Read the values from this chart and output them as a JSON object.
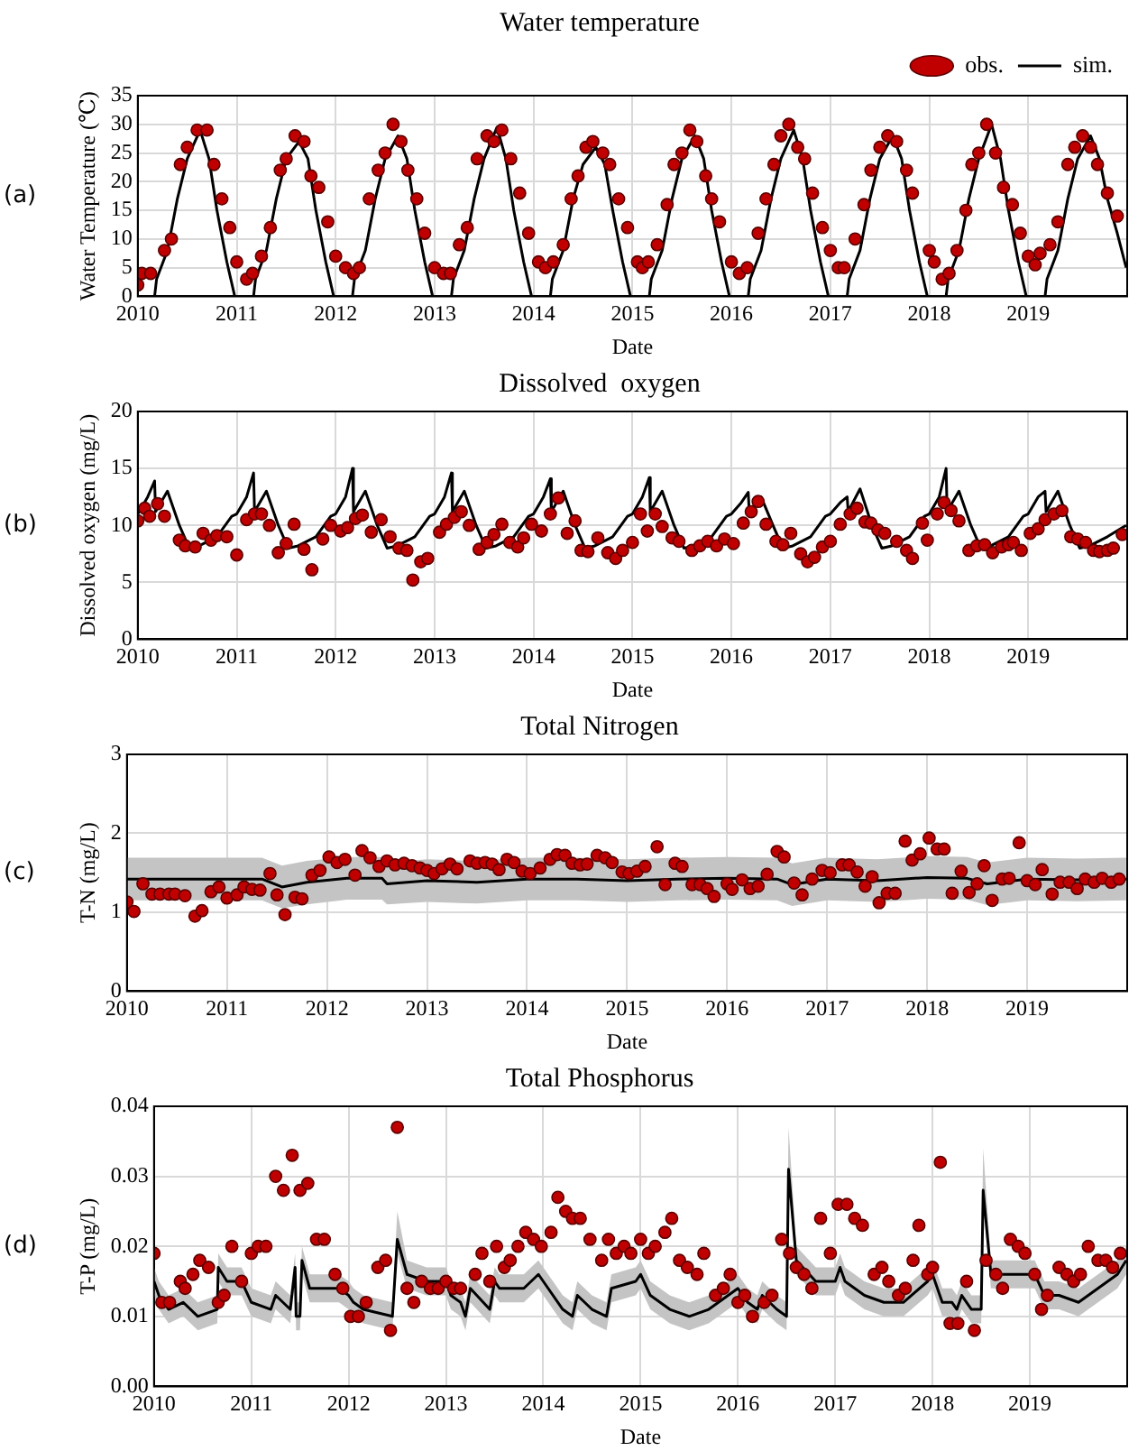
{
  "chart_data": [
    {
      "type": "scatter",
      "title": "Water temperature",
      "xlabel": "Date",
      "ylabel": "Water Temperature (℃)",
      "annotations": [
        "(a)"
      ],
      "legend": "top right",
      "grid": true,
      "xlim": [
        2010,
        2020
      ],
      "xticks": [
        2010,
        2011,
        2012,
        2013,
        2014,
        2015,
        2016,
        2017,
        2018,
        2019
      ],
      "ylim": [
        0,
        35
      ],
      "yticks": [
        0,
        5,
        10,
        15,
        20,
        25,
        30,
        35
      ],
      "series": [
        {
          "name": "obs.",
          "marker": "circle",
          "color": "#c00000",
          "x": [
            2010.0,
            2010.04,
            2010.13,
            2010.27,
            2010.34,
            2010.43,
            2010.5,
            2010.6,
            2010.7,
            2010.77,
            2010.85,
            2010.93,
            2011.0,
            2011.1,
            2011.16,
            2011.25,
            2011.34,
            2011.44,
            2011.5,
            2011.59,
            2011.68,
            2011.75,
            2011.83,
            2011.92,
            2012.0,
            2012.1,
            2012.18,
            2012.24,
            2012.34,
            2012.43,
            2012.5,
            2012.58,
            2012.66,
            2012.73,
            2012.82,
            2012.9,
            2013.0,
            2013.09,
            2013.16,
            2013.25,
            2013.33,
            2013.43,
            2013.53,
            2013.6,
            2013.68,
            2013.77,
            2013.86,
            2013.95,
            2014.05,
            2014.12,
            2014.2,
            2014.3,
            2014.38,
            2014.45,
            2014.53,
            2014.6,
            2014.7,
            2014.77,
            2014.86,
            2014.95,
            2015.05,
            2015.1,
            2015.16,
            2015.25,
            2015.35,
            2015.42,
            2015.5,
            2015.58,
            2015.65,
            2015.74,
            2015.8,
            2015.88,
            2016.0,
            2016.08,
            2016.16,
            2016.27,
            2016.35,
            2016.43,
            2016.5,
            2016.58,
            2016.67,
            2016.74,
            2016.82,
            2016.92,
            2017.0,
            2017.08,
            2017.14,
            2017.25,
            2017.34,
            2017.41,
            2017.5,
            2017.58,
            2017.67,
            2017.77,
            2017.83,
            2018.0,
            2018.05,
            2018.13,
            2018.2,
            2018.28,
            2018.37,
            2018.43,
            2018.5,
            2018.58,
            2018.67,
            2018.75,
            2018.84,
            2018.92,
            2019.0,
            2019.07,
            2019.12,
            2019.22,
            2019.3,
            2019.4,
            2019.47,
            2019.55,
            2019.63,
            2019.7,
            2019.8,
            2019.9
          ],
          "values": [
            2,
            4,
            4,
            8,
            10,
            23,
            26,
            29,
            29,
            23,
            17,
            12,
            6,
            3,
            4,
            7,
            12,
            22,
            24,
            28,
            27,
            21,
            19,
            13,
            7,
            5,
            4,
            5,
            17,
            22,
            25,
            30,
            27,
            22,
            17,
            11,
            5,
            4,
            4,
            9,
            12,
            24,
            28,
            27,
            29,
            24,
            18,
            11,
            6,
            5,
            6,
            9,
            17,
            21,
            26,
            27,
            25,
            23,
            17,
            12,
            6,
            5,
            6,
            9,
            16,
            23,
            25,
            29,
            27,
            21,
            17,
            13,
            6,
            4,
            5,
            11,
            17,
            23,
            28,
            30,
            26,
            24,
            18,
            12,
            8,
            5,
            5,
            10,
            16,
            22,
            26,
            28,
            27,
            22,
            18,
            8,
            6,
            3,
            4,
            8,
            15,
            23,
            25,
            30,
            25,
            19,
            16,
            11,
            7,
            5.5,
            7.5,
            9,
            13,
            23,
            26,
            28,
            26,
            23,
            18,
            14
          ]
        },
        {
          "name": "sim.",
          "type": "line",
          "color": "#000000",
          "x": [
            2010.01,
            2010.17,
            2010.19,
            2010.3,
            2010.4,
            2010.5,
            2010.63,
            2010.72,
            2010.8,
            2010.9,
            2010.98,
            2011.01,
            2011.17,
            2011.19,
            2011.3,
            2011.4,
            2011.5,
            2011.63,
            2011.72,
            2011.8,
            2011.9,
            2011.98,
            2012.01,
            2012.17,
            2012.19,
            2012.3,
            2012.4,
            2012.5,
            2012.63,
            2012.72,
            2012.8,
            2012.9,
            2012.98,
            2013.01,
            2013.17,
            2013.19,
            2013.3,
            2013.4,
            2013.5,
            2013.63,
            2013.72,
            2013.8,
            2013.9,
            2013.98,
            2014.01,
            2014.17,
            2014.19,
            2014.3,
            2014.4,
            2014.5,
            2014.63,
            2014.72,
            2014.8,
            2014.9,
            2014.98,
            2015.01,
            2015.17,
            2015.19,
            2015.3,
            2015.4,
            2015.5,
            2015.63,
            2015.72,
            2015.8,
            2015.9,
            2015.98,
            2016.01,
            2016.17,
            2016.19,
            2016.3,
            2016.4,
            2016.5,
            2016.63,
            2016.72,
            2016.8,
            2016.9,
            2016.98,
            2017.01,
            2017.17,
            2017.19,
            2017.3,
            2017.4,
            2017.5,
            2017.63,
            2017.72,
            2017.8,
            2017.9,
            2017.98,
            2018.01,
            2018.17,
            2018.19,
            2018.3,
            2018.4,
            2018.5,
            2018.63,
            2018.72,
            2018.8,
            2018.9,
            2018.98,
            2019.01,
            2019.17,
            2019.19,
            2019.3,
            2019.4,
            2019.5,
            2019.63,
            2019.72,
            2019.8,
            2019.9,
            2019.99
          ],
          "values": [
            0,
            0,
            3,
            8,
            17,
            24,
            29,
            24,
            15,
            6,
            0,
            0,
            0,
            3,
            8,
            17,
            24,
            27,
            24,
            15,
            6,
            0,
            0,
            0,
            3,
            8,
            17,
            24,
            28,
            24,
            15,
            6,
            0,
            0,
            0,
            3,
            8,
            17,
            24,
            29.5,
            24,
            15,
            6,
            0,
            0,
            0,
            3,
            8,
            17,
            23,
            26,
            23,
            15,
            6,
            0,
            0,
            0,
            3,
            8,
            17,
            24,
            28,
            24,
            15,
            6,
            0,
            0,
            0,
            3,
            8,
            17,
            24,
            29,
            24,
            15,
            6,
            0,
            0,
            0,
            3,
            8,
            17,
            24,
            28,
            24,
            15,
            6,
            0,
            0,
            0,
            3,
            8,
            17,
            24,
            30,
            24,
            15,
            6,
            0,
            0,
            0,
            3,
            8,
            17,
            24,
            28,
            24,
            17,
            11,
            5
          ]
        }
      ]
    },
    {
      "type": "scatter",
      "title": "Dissolved  oxygen",
      "xlabel": "Date",
      "ylabel": "Dissolved oxygen (mg/L)",
      "annotations": [
        "(b)"
      ],
      "grid": true,
      "xlim": [
        2010,
        2020
      ],
      "xticks": [
        2010,
        2011,
        2012,
        2013,
        2014,
        2015,
        2016,
        2017,
        2018,
        2019
      ],
      "ylim": [
        0,
        20
      ],
      "yticks": [
        0,
        5,
        10,
        15,
        20
      ],
      "series": [
        {
          "marker": "circle",
          "color": "#c00000",
          "x": [
            2010.0,
            2010.07,
            2010.12,
            2010.2,
            2010.27,
            2010.42,
            2010.48,
            2010.58,
            2010.66,
            2010.74,
            2010.8,
            2010.9,
            2011.0,
            2011.1,
            2011.18,
            2011.25,
            2011.33,
            2011.42,
            2011.5,
            2011.58,
            2011.68,
            2011.76,
            2011.87,
            2011.95,
            2012.05,
            2012.12,
            2012.2,
            2012.27,
            2012.36,
            2012.46,
            2012.55,
            2012.64,
            2012.72,
            2012.78,
            2012.86,
            2012.93,
            2013.05,
            2013.12,
            2013.2,
            2013.27,
            2013.35,
            2013.45,
            2013.53,
            2013.6,
            2013.68,
            2013.76,
            2013.84,
            2013.9,
            2013.98,
            2014.08,
            2014.17,
            2014.25,
            2014.34,
            2014.42,
            2014.48,
            2014.55,
            2014.65,
            2014.75,
            2014.83,
            2014.9,
            2015.0,
            2015.08,
            2015.15,
            2015.23,
            2015.3,
            2015.4,
            2015.47,
            2015.6,
            2015.68,
            2015.76,
            2015.85,
            2015.93,
            2016.02,
            2016.12,
            2016.2,
            2016.27,
            2016.35,
            2016.45,
            2016.52,
            2016.6,
            2016.7,
            2016.77,
            2016.84,
            2016.92,
            2017.0,
            2017.1,
            2017.2,
            2017.27,
            2017.35,
            2017.41,
            2017.48,
            2017.55,
            2017.67,
            2017.77,
            2017.83,
            2017.93,
            2017.98,
            2018.08,
            2018.15,
            2018.22,
            2018.3,
            2018.4,
            2018.48,
            2018.56,
            2018.64,
            2018.73,
            2018.8,
            2018.85,
            2018.93,
            2019.02,
            2019.1,
            2019.17,
            2019.26,
            2019.34,
            2019.43,
            2019.5,
            2019.58,
            2019.66,
            2019.72,
            2019.8,
            2019.86,
            2019.95
          ],
          "values": [
            10.4,
            11.5,
            10.8,
            11.9,
            10.8,
            8.7,
            8.2,
            8.1,
            9.3,
            8.7,
            9.1,
            9.0,
            7.4,
            10.5,
            11.0,
            11.0,
            10.0,
            7.6,
            8.4,
            10.1,
            7.9,
            6.1,
            8.8,
            10.0,
            9.5,
            9.8,
            10.6,
            10.9,
            9.4,
            10.5,
            9.0,
            8.0,
            7.8,
            5.2,
            6.8,
            7.1,
            9.4,
            10.1,
            10.7,
            11.2,
            10.0,
            7.9,
            8.5,
            9.2,
            10.1,
            8.5,
            8.1,
            8.9,
            10.1,
            9.5,
            11.0,
            12.4,
            9.3,
            10.4,
            7.8,
            7.7,
            8.9,
            7.6,
            7.1,
            7.8,
            8.5,
            11.0,
            9.5,
            11.0,
            9.9,
            8.9,
            8.6,
            7.8,
            8.2,
            8.6,
            8.2,
            8.8,
            8.4,
            10.2,
            11.2,
            12.1,
            10.1,
            8.6,
            8.3,
            9.3,
            7.5,
            6.8,
            7.2,
            8.1,
            8.6,
            10.1,
            11.0,
            11.5,
            10.3,
            10.2,
            9.6,
            9.3,
            8.6,
            7.8,
            7.1,
            10.2,
            8.7,
            11.0,
            12.0,
            11.3,
            10.4,
            7.8,
            8.2,
            8.3,
            7.6,
            8.1,
            8.3,
            8.5,
            7.8,
            9.3,
            9.7,
            10.5,
            11.0,
            11.3,
            9.0,
            8.8,
            8.5,
            7.8,
            7.7,
            7.8,
            8.0,
            9.2
          ]
        },
        {
          "type": "line",
          "color": "#000000",
          "x": [
            2010.0,
            2010.1,
            2010.17,
            2010.18,
            2010.3,
            2010.42,
            2010.52,
            2010.62,
            2010.8,
            2010.95,
            2011.0,
            2011.1,
            2011.17,
            2011.18,
            2011.3,
            2011.42,
            2011.52,
            2011.62,
            2011.8,
            2011.95,
            2012.0,
            2012.1,
            2012.17,
            2012.18,
            2012.3,
            2012.42,
            2012.52,
            2012.62,
            2012.8,
            2012.95,
            2013.0,
            2013.1,
            2013.17,
            2013.18,
            2013.3,
            2013.42,
            2013.52,
            2013.62,
            2013.8,
            2013.95,
            2014.0,
            2014.1,
            2014.17,
            2014.18,
            2014.3,
            2014.42,
            2014.52,
            2014.62,
            2014.8,
            2014.95,
            2015.0,
            2015.1,
            2015.17,
            2015.18,
            2015.3,
            2015.42,
            2015.52,
            2015.62,
            2015.8,
            2015.95,
            2016.0,
            2016.1,
            2016.17,
            2016.18,
            2016.3,
            2016.42,
            2016.52,
            2016.62,
            2016.8,
            2016.95,
            2017.0,
            2017.1,
            2017.17,
            2017.18,
            2017.3,
            2017.42,
            2017.52,
            2017.62,
            2017.8,
            2017.95,
            2018.0,
            2018.1,
            2018.17,
            2018.18,
            2018.3,
            2018.42,
            2018.52,
            2018.62,
            2018.8,
            2018.95,
            2019.0,
            2019.1,
            2019.17,
            2019.18,
            2019.3,
            2019.42,
            2019.52,
            2019.62,
            2019.8,
            2019.95,
            2019.99
          ],
          "values": [
            11,
            12.5,
            13.9,
            11.2,
            13,
            10,
            8,
            8.2,
            9,
            10.8,
            11,
            12.5,
            14.6,
            11.2,
            13,
            10,
            8,
            8.2,
            9,
            10.8,
            11,
            12.5,
            15,
            11.2,
            13,
            10,
            8,
            8.2,
            9,
            10.8,
            11,
            12.5,
            14.6,
            11.2,
            13,
            10,
            8,
            8.2,
            9,
            10.8,
            11,
            12.5,
            14.1,
            11.2,
            13,
            10,
            8,
            8.2,
            9,
            10.8,
            11,
            12.5,
            14.2,
            11.2,
            13,
            10,
            8,
            8.2,
            9,
            10.8,
            11,
            12,
            12.9,
            11.2,
            12.5,
            10,
            8,
            8.2,
            9,
            10.8,
            11,
            12,
            12.5,
            11.2,
            13.2,
            10,
            8,
            8.2,
            9,
            10.8,
            11,
            12.5,
            15,
            11.2,
            13,
            10,
            8,
            8.2,
            9,
            10.8,
            11,
            12.5,
            13,
            11.2,
            13,
            10,
            8,
            8.2,
            9,
            9.8,
            10
          ]
        }
      ]
    },
    {
      "type": "scatter",
      "title": "Total Nitrogen",
      "xlabel": "Date",
      "ylabel": "T-N (mg/L)",
      "annotations": [
        "(c)"
      ],
      "grid": true,
      "xlim": [
        2010,
        2020
      ],
      "xticks": [
        2010,
        2011,
        2012,
        2013,
        2014,
        2015,
        2016,
        2017,
        2018,
        2019
      ],
      "ylim": [
        0,
        3
      ],
      "yticks": [
        0,
        1,
        2,
        3
      ],
      "series": [
        {
          "marker": "circle",
          "color": "#c00000",
          "x": [
            2010.0,
            2010.07,
            2010.16,
            2010.25,
            2010.33,
            2010.42,
            2010.48,
            2010.58,
            2010.68,
            2010.75,
            2010.84,
            2010.92,
            2011.0,
            2011.1,
            2011.17,
            2011.25,
            2011.33,
            2011.43,
            2011.5,
            2011.58,
            2011.68,
            2011.75,
            2011.85,
            2011.93,
            2012.02,
            2012.1,
            2012.18,
            2012.28,
            2012.35,
            2012.43,
            2012.52,
            2012.6,
            2012.68,
            2012.77,
            2012.85,
            2012.93,
            2013.0,
            2013.07,
            2013.15,
            2013.23,
            2013.3,
            2013.43,
            2013.5,
            2013.58,
            2013.65,
            2013.72,
            2013.8,
            2013.87,
            2013.95,
            2014.03,
            2014.13,
            2014.23,
            2014.3,
            2014.38,
            2014.45,
            2014.53,
            2014.6,
            2014.7,
            2014.78,
            2014.85,
            2014.95,
            2015.02,
            2015.1,
            2015.18,
            2015.3,
            2015.38,
            2015.48,
            2015.55,
            2015.65,
            2015.73,
            2015.8,
            2015.87,
            2016.0,
            2016.05,
            2016.15,
            2016.23,
            2016.31,
            2016.4,
            2016.5,
            2016.57,
            2016.67,
            2016.75,
            2016.85,
            2016.95,
            2017.03,
            2017.15,
            2017.22,
            2017.3,
            2017.38,
            2017.45,
            2017.52,
            2017.6,
            2017.68,
            2017.78,
            2017.85,
            2017.93,
            2018.02,
            2018.1,
            2018.17,
            2018.25,
            2018.34,
            2018.42,
            2018.5,
            2018.57,
            2018.65,
            2018.75,
            2018.82,
            2018.92,
            2019.0,
            2019.08,
            2019.15,
            2019.25,
            2019.33,
            2019.42,
            2019.5,
            2019.58,
            2019.67,
            2019.75,
            2019.84,
            2019.92
          ],
          "values": [
            1.13,
            1.01,
            1.36,
            1.23,
            1.23,
            1.23,
            1.23,
            1.21,
            0.95,
            1.02,
            1.26,
            1.32,
            1.18,
            1.22,
            1.32,
            1.29,
            1.28,
            1.49,
            1.22,
            0.97,
            1.19,
            1.17,
            1.47,
            1.53,
            1.7,
            1.63,
            1.67,
            1.47,
            1.78,
            1.69,
            1.58,
            1.65,
            1.6,
            1.62,
            1.59,
            1.56,
            1.53,
            1.49,
            1.55,
            1.61,
            1.55,
            1.65,
            1.62,
            1.63,
            1.61,
            1.54,
            1.67,
            1.63,
            1.52,
            1.49,
            1.56,
            1.67,
            1.73,
            1.72,
            1.62,
            1.6,
            1.61,
            1.72,
            1.69,
            1.63,
            1.51,
            1.49,
            1.52,
            1.58,
            1.83,
            1.35,
            1.62,
            1.58,
            1.35,
            1.35,
            1.3,
            1.2,
            1.36,
            1.29,
            1.41,
            1.3,
            1.33,
            1.48,
            1.77,
            1.7,
            1.37,
            1.22,
            1.42,
            1.53,
            1.5,
            1.6,
            1.6,
            1.51,
            1.33,
            1.45,
            1.12,
            1.24,
            1.24,
            1.9,
            1.66,
            1.74,
            1.94,
            1.8,
            1.8,
            1.24,
            1.52,
            1.25,
            1.36,
            1.59,
            1.15,
            1.42,
            1.43,
            1.88,
            1.4,
            1.35,
            1.54,
            1.23,
            1.38,
            1.38,
            1.3,
            1.42,
            1.38,
            1.43,
            1.38,
            1.42
          ]
        },
        {
          "type": "line",
          "color": "#000000",
          "x": [
            2010,
            2011,
            2011.35,
            2011.55,
            2011.8,
            2012.2,
            2012.55,
            2012.6,
            2013,
            2013.5,
            2014,
            2014.5,
            2015,
            2015.5,
            2016,
            2016.5,
            2016.65,
            2017,
            2017.5,
            2018,
            2018.4,
            2018.6,
            2019,
            2019.5,
            2019.99
          ],
          "values": [
            1.42,
            1.42,
            1.42,
            1.32,
            1.38,
            1.43,
            1.43,
            1.36,
            1.4,
            1.38,
            1.42,
            1.42,
            1.4,
            1.42,
            1.43,
            1.42,
            1.35,
            1.42,
            1.4,
            1.44,
            1.43,
            1.36,
            1.42,
            1.41,
            1.42
          ],
          "lower": [
            1.15,
            1.15,
            1.15,
            1.05,
            1.1,
            1.16,
            1.16,
            1.1,
            1.13,
            1.11,
            1.15,
            1.15,
            1.13,
            1.15,
            1.16,
            1.15,
            1.08,
            1.15,
            1.13,
            1.17,
            1.16,
            1.09,
            1.15,
            1.14,
            1.15
          ],
          "upper": [
            1.69,
            1.69,
            1.69,
            1.59,
            1.65,
            1.7,
            1.7,
            1.63,
            1.67,
            1.65,
            1.69,
            1.69,
            1.67,
            1.69,
            1.7,
            1.69,
            1.62,
            1.69,
            1.67,
            1.71,
            1.7,
            1.63,
            1.69,
            1.68,
            1.69
          ]
        }
      ]
    },
    {
      "type": "scatter",
      "title": "Total Phosphorus",
      "xlabel": "Date",
      "ylabel": "T-P (mg/L)",
      "annotations": [
        "(d)"
      ],
      "grid": true,
      "xlim": [
        2010,
        2020
      ],
      "xticks": [
        2010,
        2011,
        2012,
        2013,
        2014,
        2015,
        2016,
        2017,
        2018,
        2019
      ],
      "ylim": [
        0,
        0.04
      ],
      "yticks": [
        {
          "value": 0,
          "label": "0.00"
        },
        0.01,
        0.02,
        0.03,
        0.04
      ],
      "series": [
        {
          "marker": "circle",
          "color": "#c00000",
          "x": [
            2010.0,
            2010.08,
            2010.16,
            2010.27,
            2010.32,
            2010.4,
            2010.47,
            2010.56,
            2010.66,
            2010.72,
            2010.8,
            2010.9,
            2011.0,
            2011.07,
            2011.15,
            2011.25,
            2011.33,
            2011.42,
            2011.5,
            2011.58,
            2011.67,
            2011.75,
            2011.86,
            2011.94,
            2012.02,
            2012.1,
            2012.18,
            2012.3,
            2012.38,
            2012.43,
            2012.5,
            2012.6,
            2012.67,
            2012.75,
            2012.84,
            2012.92,
            2013.0,
            2013.08,
            2013.15,
            2013.3,
            2013.37,
            2013.45,
            2013.52,
            2013.6,
            2013.66,
            2013.74,
            2013.82,
            2013.9,
            2013.98,
            2014.08,
            2014.15,
            2014.23,
            2014.3,
            2014.38,
            2014.48,
            2014.6,
            2014.67,
            2014.75,
            2014.83,
            2014.9,
            2015.0,
            2015.08,
            2015.15,
            2015.25,
            2015.32,
            2015.4,
            2015.48,
            2015.58,
            2015.65,
            2015.77,
            2015.85,
            2015.92,
            2016.0,
            2016.07,
            2016.15,
            2016.27,
            2016.35,
            2016.45,
            2016.53,
            2016.6,
            2016.68,
            2016.76,
            2016.85,
            2016.95,
            2017.03,
            2017.12,
            2017.2,
            2017.28,
            2017.4,
            2017.48,
            2017.55,
            2017.65,
            2017.72,
            2017.8,
            2017.86,
            2017.95,
            2018.0,
            2018.08,
            2018.18,
            2018.26,
            2018.35,
            2018.43,
            2018.55,
            2018.65,
            2018.72,
            2018.8,
            2018.88,
            2018.95,
            2019.05,
            2019.12,
            2019.18,
            2019.3,
            2019.38,
            2019.45,
            2019.52,
            2019.6,
            2019.7,
            2019.78,
            2019.85,
            2019.93
          ],
          "values": [
            0.019,
            0.012,
            0.012,
            0.015,
            0.014,
            0.016,
            0.018,
            0.017,
            0.012,
            0.013,
            0.02,
            0.015,
            0.019,
            0.02,
            0.02,
            0.03,
            0.028,
            0.033,
            0.028,
            0.029,
            0.021,
            0.021,
            0.016,
            0.014,
            0.01,
            0.01,
            0.012,
            0.017,
            0.018,
            0.008,
            0.037,
            0.014,
            0.012,
            0.015,
            0.014,
            0.014,
            0.015,
            0.014,
            0.014,
            0.016,
            0.019,
            0.015,
            0.02,
            0.017,
            0.018,
            0.02,
            0.022,
            0.021,
            0.02,
            0.022,
            0.027,
            0.025,
            0.024,
            0.024,
            0.021,
            0.018,
            0.021,
            0.019,
            0.02,
            0.019,
            0.021,
            0.019,
            0.02,
            0.022,
            0.024,
            0.018,
            0.017,
            0.016,
            0.019,
            0.013,
            0.014,
            0.016,
            0.012,
            0.013,
            0.01,
            0.012,
            0.013,
            0.021,
            0.019,
            0.017,
            0.016,
            0.014,
            0.024,
            0.019,
            0.026,
            0.026,
            0.024,
            0.023,
            0.016,
            0.017,
            0.015,
            0.013,
            0.014,
            0.018,
            0.023,
            0.016,
            0.017,
            0.032,
            0.009,
            0.009,
            0.015,
            0.008,
            0.018,
            0.016,
            0.014,
            0.021,
            0.02,
            0.019,
            0.016,
            0.011,
            0.013,
            0.017,
            0.016,
            0.015,
            0.016,
            0.02,
            0.018,
            0.018,
            0.017,
            0.019
          ]
        },
        {
          "type": "line",
          "color": "#000000",
          "x": [
            2010.0,
            2010.05,
            2010.15,
            2010.3,
            2010.45,
            2010.65,
            2010.66,
            2010.75,
            2010.9,
            2011.0,
            2011.2,
            2011.25,
            2011.4,
            2011.45,
            2011.46,
            2011.5,
            2011.52,
            2011.6,
            2011.9,
            2012.0,
            2012.05,
            2012.15,
            2012.45,
            2012.5,
            2012.6,
            2012.8,
            2013.0,
            2013.05,
            2013.15,
            2013.2,
            2013.25,
            2013.45,
            2013.5,
            2013.55,
            2013.8,
            2013.95,
            2014.05,
            2014.2,
            2014.3,
            2014.35,
            2014.5,
            2014.65,
            2014.7,
            2014.95,
            2015.0,
            2015.1,
            2015.3,
            2015.5,
            2015.7,
            2015.9,
            2016.0,
            2016.1,
            2016.2,
            2016.25,
            2016.4,
            2016.5,
            2016.52,
            2016.6,
            2016.8,
            2017.0,
            2017.05,
            2017.1,
            2017.3,
            2017.5,
            2017.7,
            2017.95,
            2018.0,
            2018.1,
            2018.2,
            2018.25,
            2018.3,
            2018.4,
            2018.5,
            2018.52,
            2018.6,
            2018.8,
            2019.0,
            2019.05,
            2019.15,
            2019.3,
            2019.5,
            2019.7,
            2019.9,
            2019.99
          ],
          "values": [
            0.015,
            0.013,
            0.011,
            0.012,
            0.01,
            0.011,
            0.017,
            0.015,
            0.015,
            0.012,
            0.011,
            0.013,
            0.011,
            0.017,
            0.01,
            0.01,
            0.018,
            0.014,
            0.014,
            0.013,
            0.012,
            0.011,
            0.01,
            0.021,
            0.016,
            0.015,
            0.015,
            0.013,
            0.012,
            0.01,
            0.014,
            0.011,
            0.015,
            0.014,
            0.014,
            0.016,
            0.014,
            0.011,
            0.01,
            0.013,
            0.011,
            0.01,
            0.014,
            0.015,
            0.016,
            0.013,
            0.011,
            0.01,
            0.011,
            0.013,
            0.014,
            0.012,
            0.011,
            0.013,
            0.011,
            0.01,
            0.031,
            0.018,
            0.015,
            0.015,
            0.017,
            0.015,
            0.013,
            0.012,
            0.012,
            0.015,
            0.016,
            0.012,
            0.012,
            0.011,
            0.013,
            0.011,
            0.011,
            0.028,
            0.016,
            0.016,
            0.016,
            0.016,
            0.013,
            0.013,
            0.012,
            0.014,
            0.016,
            0.018
          ],
          "lower": [
            0.013,
            0.011,
            0.009,
            0.01,
            0.008,
            0.009,
            0.015,
            0.013,
            0.013,
            0.01,
            0.009,
            0.011,
            0.009,
            0.015,
            0.008,
            0.008,
            0.016,
            0.012,
            0.012,
            0.011,
            0.01,
            0.009,
            0.008,
            0.019,
            0.014,
            0.013,
            0.013,
            0.011,
            0.01,
            0.008,
            0.012,
            0.009,
            0.013,
            0.012,
            0.012,
            0.014,
            0.012,
            0.009,
            0.008,
            0.011,
            0.009,
            0.008,
            0.012,
            0.013,
            0.014,
            0.011,
            0.009,
            0.008,
            0.009,
            0.011,
            0.012,
            0.01,
            0.009,
            0.011,
            0.009,
            0.008,
            0.029,
            0.016,
            0.013,
            0.013,
            0.015,
            0.013,
            0.011,
            0.01,
            0.01,
            0.013,
            0.014,
            0.01,
            0.01,
            0.009,
            0.011,
            0.009,
            0.009,
            0.026,
            0.014,
            0.014,
            0.014,
            0.014,
            0.011,
            0.011,
            0.01,
            0.012,
            0.014,
            0.016
          ],
          "upper": [
            0.017,
            0.015,
            0.013,
            0.014,
            0.012,
            0.013,
            0.019,
            0.017,
            0.017,
            0.014,
            0.013,
            0.015,
            0.013,
            0.019,
            0.012,
            0.012,
            0.02,
            0.016,
            0.016,
            0.015,
            0.014,
            0.013,
            0.012,
            0.025,
            0.018,
            0.017,
            0.017,
            0.015,
            0.014,
            0.012,
            0.016,
            0.013,
            0.017,
            0.016,
            0.016,
            0.018,
            0.016,
            0.013,
            0.012,
            0.015,
            0.013,
            0.012,
            0.016,
            0.017,
            0.018,
            0.015,
            0.013,
            0.012,
            0.013,
            0.015,
            0.016,
            0.014,
            0.013,
            0.015,
            0.013,
            0.012,
            0.037,
            0.02,
            0.017,
            0.017,
            0.019,
            0.017,
            0.015,
            0.014,
            0.014,
            0.017,
            0.018,
            0.014,
            0.014,
            0.013,
            0.015,
            0.013,
            0.013,
            0.034,
            0.018,
            0.018,
            0.018,
            0.018,
            0.015,
            0.015,
            0.014,
            0.016,
            0.018,
            0.02
          ]
        }
      ]
    }
  ]
}
